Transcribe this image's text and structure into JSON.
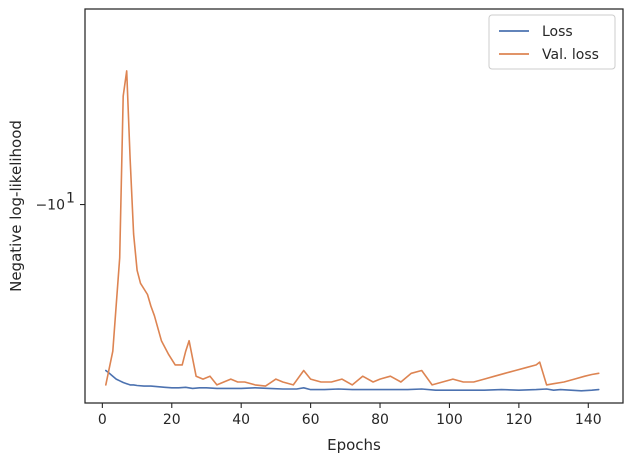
{
  "chart_data": {
    "type": "line",
    "xlabel": "Epochs",
    "ylabel": "Negative log-likelihood",
    "xlim": [
      -5,
      150
    ],
    "yscale": "symlog-negative",
    "ylim": [
      -5.7,
      -17.4
    ],
    "x_ticks": [
      {
        "value": 0,
        "label": "0"
      },
      {
        "value": 20,
        "label": "20"
      },
      {
        "value": 40,
        "label": "40"
      },
      {
        "value": 60,
        "label": "60"
      },
      {
        "value": 80,
        "label": "80"
      },
      {
        "value": 100,
        "label": "100"
      },
      {
        "value": 120,
        "label": "120"
      },
      {
        "value": 140,
        "label": "140"
      }
    ],
    "y_ticks": [
      {
        "value": -10,
        "label": "−10",
        "exp": "1"
      }
    ],
    "grid": false,
    "legend_position": "top-right",
    "series": [
      {
        "name": "Loss",
        "color": "#4c72b0",
        "x": [
          1,
          2,
          3,
          4,
          5,
          6,
          7,
          8,
          9,
          10,
          12,
          14,
          16,
          18,
          20,
          22,
          24,
          26,
          28,
          30,
          33,
          36,
          40,
          44,
          48,
          52,
          56,
          58,
          60,
          64,
          68,
          72,
          76,
          80,
          84,
          88,
          92,
          96,
          100,
          105,
          110,
          115,
          120,
          125,
          128,
          130,
          132,
          135,
          138,
          141,
          143
        ],
        "values": [
          -6.25,
          -6.2,
          -6.15,
          -6.1,
          -6.07,
          -6.04,
          -6.02,
          -6.0,
          -6.0,
          -5.99,
          -5.98,
          -5.98,
          -5.97,
          -5.96,
          -5.95,
          -5.95,
          -5.96,
          -5.94,
          -5.95,
          -5.95,
          -5.94,
          -5.94,
          -5.94,
          -5.95,
          -5.94,
          -5.93,
          -5.93,
          -5.95,
          -5.92,
          -5.92,
          -5.93,
          -5.92,
          -5.92,
          -5.92,
          -5.92,
          -5.92,
          -5.93,
          -5.91,
          -5.91,
          -5.91,
          -5.91,
          -5.92,
          -5.91,
          -5.92,
          -5.93,
          -5.91,
          -5.92,
          -5.91,
          -5.9,
          -5.91,
          -5.92
        ]
      },
      {
        "name": "Val. loss",
        "color": "#dd8452",
        "x": [
          1,
          3,
          5,
          6,
          7,
          8,
          9,
          10,
          11,
          13,
          14,
          15,
          17,
          19,
          21,
          23,
          24,
          25,
          27,
          29,
          31,
          33,
          35,
          37,
          39,
          41,
          44,
          47,
          50,
          52,
          55,
          58,
          60,
          63,
          66,
          69,
          72,
          75,
          78,
          80,
          83,
          86,
          89,
          92,
          95,
          98,
          101,
          104,
          107,
          110,
          113,
          116,
          119,
          122,
          125,
          126,
          128,
          130,
          133,
          136,
          139,
          141,
          143
        ],
        "values": [
          -6.0,
          -6.6,
          -8.6,
          -13.6,
          -14.6,
          -11.4,
          -9.2,
          -8.3,
          -8.0,
          -7.75,
          -7.5,
          -7.3,
          -6.8,
          -6.55,
          -6.35,
          -6.35,
          -6.6,
          -6.8,
          -6.15,
          -6.1,
          -6.15,
          -6.0,
          -6.05,
          -6.1,
          -6.05,
          -6.05,
          -6.0,
          -5.98,
          -6.1,
          -6.05,
          -6.0,
          -6.25,
          -6.1,
          -6.05,
          -6.05,
          -6.1,
          -6.0,
          -6.15,
          -6.05,
          -6.1,
          -6.15,
          -6.05,
          -6.2,
          -6.25,
          -6.0,
          -6.05,
          -6.1,
          -6.05,
          -6.05,
          -6.1,
          -6.15,
          -6.2,
          -6.25,
          -6.3,
          -6.35,
          -6.4,
          -6.0,
          -6.02,
          -6.05,
          -6.1,
          -6.15,
          -6.18,
          -6.2
        ]
      }
    ]
  }
}
